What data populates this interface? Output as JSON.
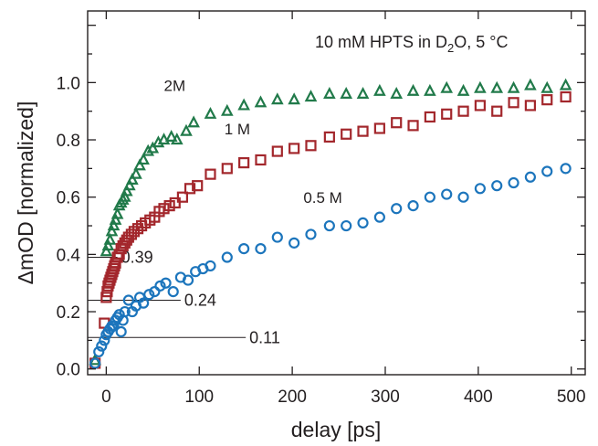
{
  "chart_data": {
    "type": "scatter",
    "title": "",
    "annotation": {
      "main": "10 mM HPTS in D",
      "subscript": "2",
      "tail": "O,  5 °C"
    },
    "xlabel": "delay [ps]",
    "ylabel": "ΔmOD [normalized]",
    "xlim": [
      -20,
      515
    ],
    "ylim": [
      -0.02,
      1.25
    ],
    "xticks": [
      0,
      100,
      200,
      300,
      400,
      500
    ],
    "xtick_labels": [
      "0",
      "100",
      "200",
      "300",
      "400",
      "500"
    ],
    "yticks": [
      0.0,
      0.2,
      0.4,
      0.6,
      0.8,
      1.0
    ],
    "ytick_labels": [
      "0.0",
      "0.2",
      "0.4",
      "0.6",
      "0.8",
      "1.0"
    ],
    "grid": false,
    "legend": "none",
    "series": [
      {
        "name": "2M",
        "marker": "triangle",
        "color": "#217a4a",
        "label_at": [
          62,
          0.97
        ],
        "x": [
          -12,
          0,
          2,
          4,
          6,
          8,
          10,
          12,
          14,
          16,
          18,
          20,
          22,
          25,
          28,
          32,
          36,
          40,
          45,
          50,
          56,
          62,
          70,
          76,
          86,
          94,
          112,
          130,
          148,
          166,
          184,
          202,
          220,
          240,
          258,
          276,
          294,
          312,
          330,
          348,
          366,
          384,
          402,
          420,
          438,
          456,
          474,
          494
        ],
        "y": [
          0.03,
          0.41,
          0.43,
          0.45,
          0.48,
          0.5,
          0.52,
          0.54,
          0.57,
          0.58,
          0.59,
          0.6,
          0.62,
          0.64,
          0.66,
          0.68,
          0.71,
          0.73,
          0.76,
          0.77,
          0.79,
          0.8,
          0.81,
          0.8,
          0.83,
          0.86,
          0.89,
          0.9,
          0.92,
          0.93,
          0.94,
          0.94,
          0.95,
          0.96,
          0.96,
          0.96,
          0.97,
          0.96,
          0.97,
          0.97,
          0.98,
          0.97,
          0.98,
          0.98,
          0.98,
          0.99,
          0.98,
          0.99
        ]
      },
      {
        "name": "1 M",
        "marker": "square",
        "color": "#a3272c",
        "label_at": [
          127,
          0.82
        ],
        "x": [
          -12,
          -2,
          0,
          1,
          2,
          3,
          4,
          5,
          6,
          7,
          8,
          9,
          10,
          12,
          14,
          16,
          18,
          20,
          22,
          24,
          27,
          30,
          34,
          38,
          42,
          47,
          52,
          57,
          62,
          68,
          74,
          82,
          90,
          98,
          112,
          130,
          148,
          166,
          184,
          202,
          220,
          240,
          258,
          276,
          294,
          312,
          330,
          348,
          366,
          384,
          402,
          420,
          438,
          456,
          474,
          494
        ],
        "y": [
          0.02,
          0.16,
          0.25,
          0.27,
          0.29,
          0.3,
          0.31,
          0.32,
          0.33,
          0.34,
          0.35,
          0.36,
          0.37,
          0.39,
          0.4,
          0.42,
          0.43,
          0.44,
          0.45,
          0.46,
          0.47,
          0.48,
          0.49,
          0.5,
          0.51,
          0.52,
          0.53,
          0.55,
          0.56,
          0.57,
          0.58,
          0.6,
          0.63,
          0.64,
          0.68,
          0.7,
          0.72,
          0.73,
          0.76,
          0.77,
          0.78,
          0.81,
          0.82,
          0.83,
          0.84,
          0.86,
          0.85,
          0.88,
          0.89,
          0.9,
          0.92,
          0.9,
          0.93,
          0.92,
          0.94,
          0.95
        ]
      },
      {
        "name": "0.5 M",
        "marker": "circle",
        "color": "#1c75bc",
        "label_at": [
          212,
          0.58
        ],
        "x": [
          -12,
          -8,
          -5,
          -2,
          0,
          2,
          4,
          6,
          8,
          10,
          12,
          14,
          16,
          18,
          20,
          24,
          28,
          32,
          36,
          40,
          46,
          52,
          58,
          64,
          72,
          80,
          88,
          96,
          104,
          112,
          130,
          148,
          166,
          184,
          202,
          220,
          240,
          258,
          276,
          294,
          312,
          330,
          348,
          366,
          384,
          402,
          420,
          438,
          456,
          474,
          494
        ],
        "y": [
          0.02,
          0.06,
          0.08,
          0.1,
          0.12,
          0.13,
          0.14,
          0.15,
          0.15,
          0.17,
          0.18,
          0.19,
          0.13,
          0.17,
          0.2,
          0.24,
          0.2,
          0.22,
          0.25,
          0.23,
          0.26,
          0.27,
          0.29,
          0.3,
          0.27,
          0.32,
          0.31,
          0.34,
          0.35,
          0.36,
          0.39,
          0.42,
          0.42,
          0.46,
          0.44,
          0.47,
          0.5,
          0.5,
          0.51,
          0.53,
          0.56,
          0.57,
          0.6,
          0.61,
          0.6,
          0.63,
          0.64,
          0.65,
          0.67,
          0.69,
          0.7
        ]
      }
    ],
    "reference_lines": [
      {
        "label": "0.39",
        "y": 0.39,
        "x_end": 12
      },
      {
        "label": "0.24",
        "y": 0.24,
        "x_end": 80
      },
      {
        "label": "0.11",
        "y": 0.11,
        "x_end": 150
      }
    ]
  }
}
